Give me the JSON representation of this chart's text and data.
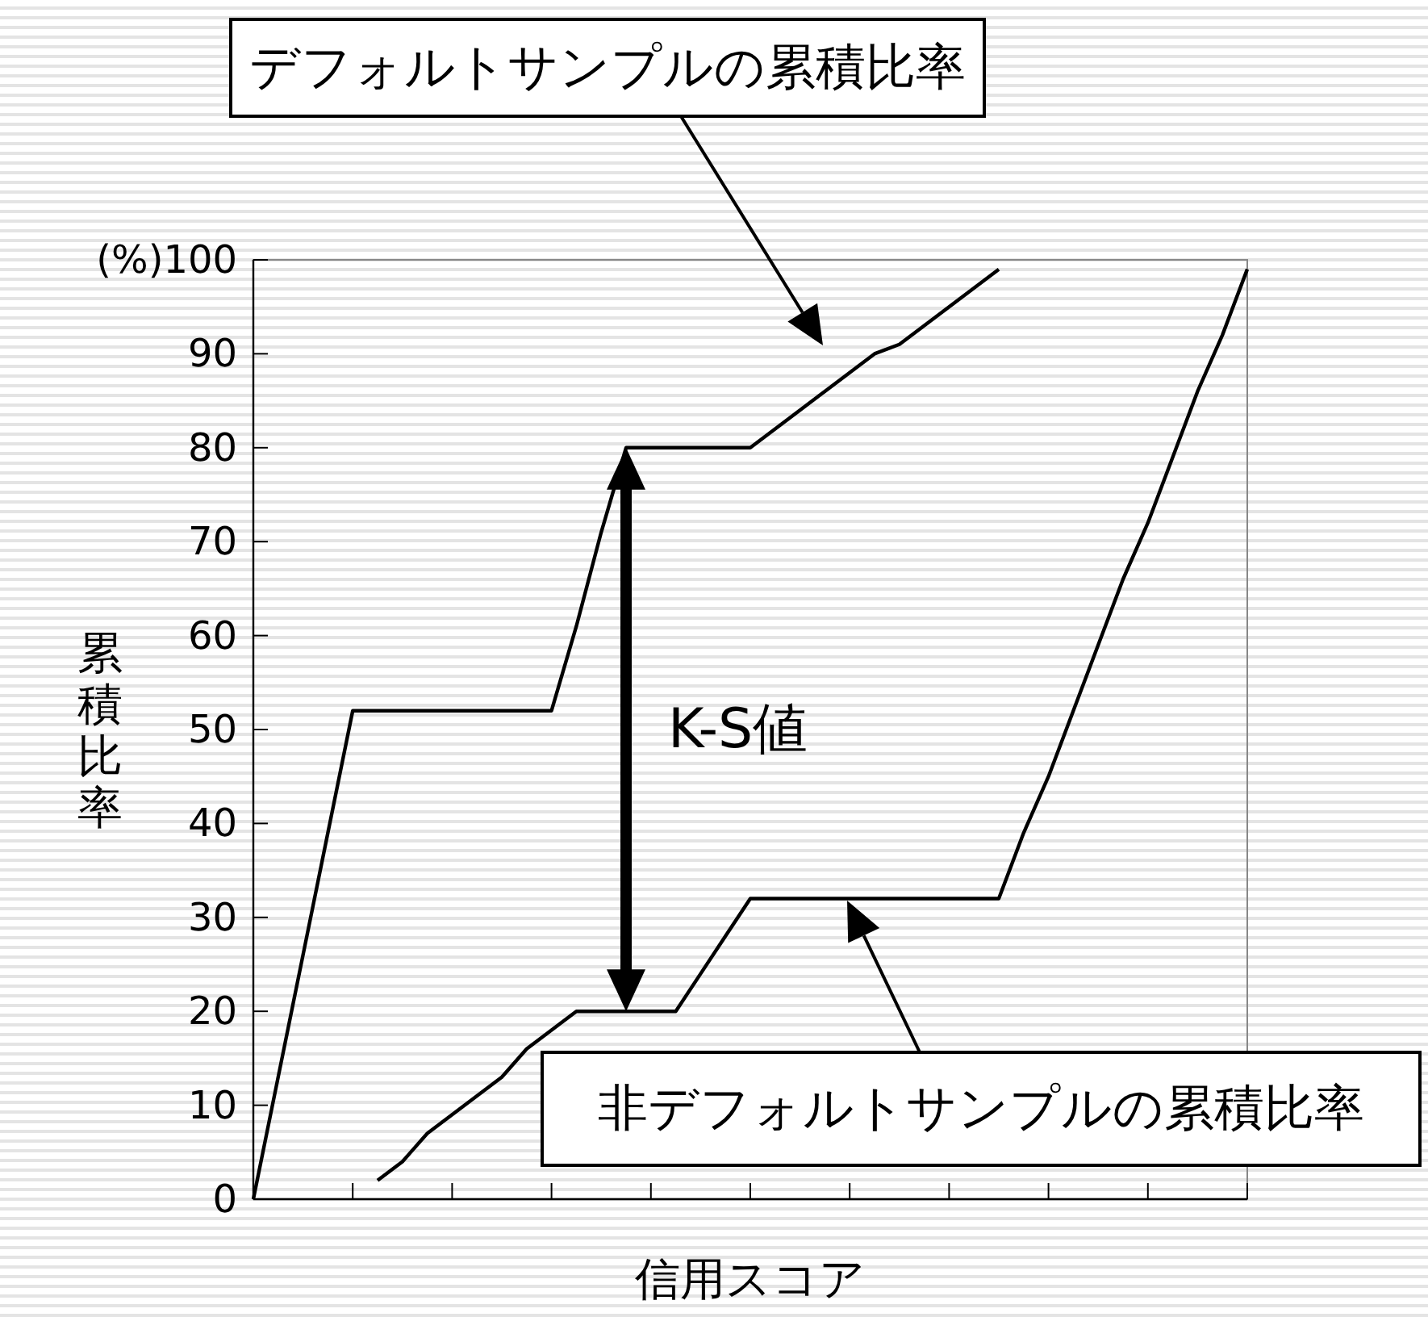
{
  "chart_data": {
    "type": "line",
    "xlabel": "信用スコア",
    "ylabel": "累積比率",
    "categories": [
      null,
      null,
      null,
      null,
      null,
      null,
      null,
      null,
      null,
      null,
      null,
      null,
      null,
      null,
      null,
      null,
      null,
      null,
      null,
      null,
      null,
      null,
      null,
      null,
      null,
      null,
      null,
      null,
      null,
      null,
      null,
      null,
      null,
      null,
      null,
      null,
      null,
      null,
      null,
      null,
      null
    ],
    "ylim": [
      0,
      100
    ],
    "yticks": [
      0,
      10,
      20,
      30,
      40,
      50,
      60,
      70,
      80,
      90,
      {
        "value": 100,
        "label": "(%)100"
      }
    ],
    "series": [
      {
        "color": "#000000",
        "values": [
          0,
          13,
          26,
          39,
          52,
          52,
          52,
          52,
          52,
          52,
          52,
          52,
          52,
          61,
          71,
          80,
          80,
          80,
          80,
          80,
          80,
          82,
          84,
          86,
          88,
          90,
          91,
          93,
          95,
          97,
          99,
          null,
          null,
          null,
          null,
          null,
          null,
          null,
          null,
          null,
          null
        ]
      },
      {
        "color": "#000000",
        "values": [
          null,
          null,
          null,
          null,
          null,
          2,
          4,
          7,
          9,
          11,
          13,
          16,
          18,
          20,
          20,
          20,
          20,
          20,
          24,
          28,
          32,
          32,
          32,
          32,
          32,
          32,
          32,
          32,
          32,
          32,
          32,
          39,
          45,
          52,
          59,
          66,
          72,
          79,
          86,
          92,
          99
        ]
      }
    ],
    "annotations": [
      "デフォルトサンプルの累積比率",
      "K-S値",
      "非デフォルトサンプルの累積比率"
    ]
  }
}
